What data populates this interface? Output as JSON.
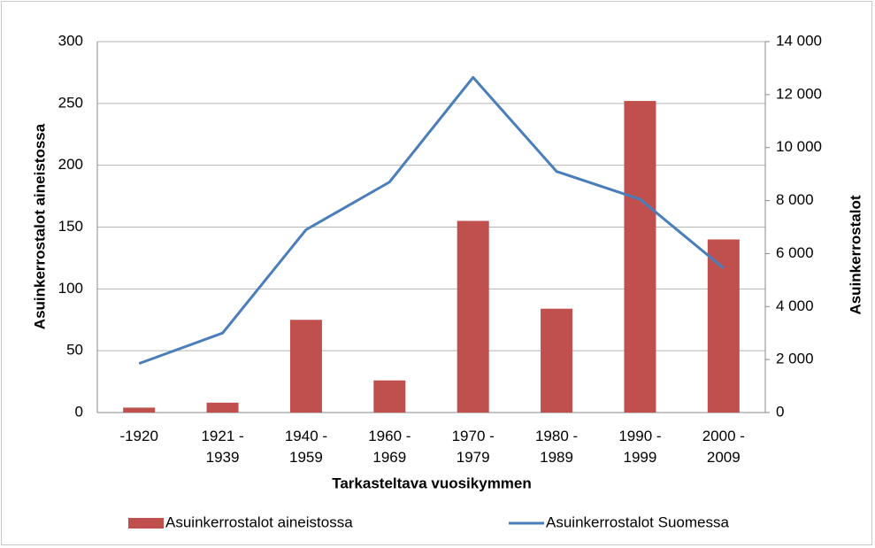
{
  "chart_data": {
    "type": "bar-line",
    "x_label": "Tarkasteltava vuosikymmen",
    "y_label": "Asuinkerrostalot aineistossa",
    "y2_label": "Asuinkerrostalot",
    "categories": [
      "-1920",
      "1921 -\n1939",
      "1940 -\n1959",
      "1960 -\n1969",
      "1970 -\n1979",
      "1980 -\n1989",
      "1990 -\n1999",
      "2000 -\n2009"
    ],
    "series": [
      {
        "name": "Asuinkerrostalot aineistossa",
        "type": "bar",
        "color": "#c0504d",
        "values": [
          4,
          8,
          75,
          26,
          155,
          84,
          252,
          140
        ]
      },
      {
        "name": "Asuinkerrostalot Suomessa",
        "type": "line",
        "axis": "y2",
        "color": "#4a7ebb",
        "values": [
          1850,
          3000,
          6900,
          8700,
          12650,
          9100,
          8050,
          5450
        ]
      }
    ],
    "ylim": [
      0,
      300
    ],
    "yticks": [
      0,
      50,
      100,
      150,
      200,
      250,
      300
    ],
    "y2lim": [
      0,
      14000
    ],
    "y2ticks": [
      0,
      {
        "value": 2000,
        "label": "2 000"
      },
      {
        "value": 4000,
        "label": "4 000"
      },
      {
        "value": 6000,
        "label": "6 000"
      },
      {
        "value": 8000,
        "label": "8 000"
      },
      {
        "value": 10000,
        "label": "10 000"
      },
      {
        "value": 12000,
        "label": "12 000"
      },
      {
        "value": 14000,
        "label": "14 000"
      }
    ],
    "grid": true,
    "legend": "bottom"
  }
}
